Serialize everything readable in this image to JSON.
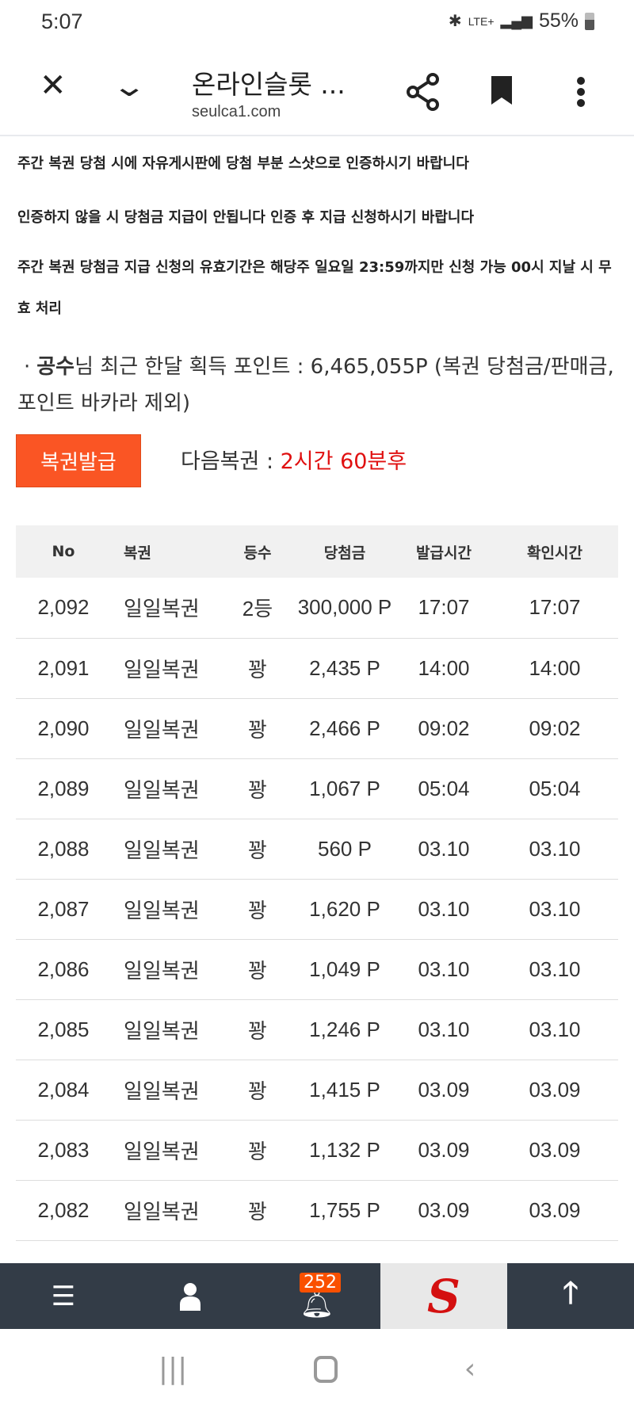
{
  "status_bar": {
    "time": "5:07",
    "network": "LTE+",
    "battery": "55%"
  },
  "browser": {
    "title": "온라인슬롯 ...",
    "url": "seulca1.com"
  },
  "notices": [
    "주간 복권 당첨 시에 자유게시판에 당첨 부분 스샷으로 인증하시기 바랍니다",
    "인증하지 않을 시 당첨금 지급이 안됩니다 인증 후 지급 신청하시기 바랍니다",
    "주간 복권 당첨금 지급 신청의 유효기간은 해당주 일요일 23:59까지만 신청 가능 00시 지날 시 무효 처리"
  ],
  "points": {
    "bullet": "·",
    "user": "공수",
    "text": "님 최근 한달 획득 포인트 : 6,465,055P (복권 당첨금/판매금, 포인트 바카라 제외)"
  },
  "issue_button": "복권발급",
  "next": {
    "label": "다음복권 : ",
    "value": "2시간 60분후"
  },
  "table": {
    "headers": [
      "No",
      "복권",
      "등수",
      "당첨금",
      "발급시간",
      "확인시간"
    ],
    "rows": [
      [
        "2,092",
        "일일복권",
        "2등",
        "300,000 P",
        "17:07",
        "17:07"
      ],
      [
        "2,091",
        "일일복권",
        "꽝",
        "2,435 P",
        "14:00",
        "14:00"
      ],
      [
        "2,090",
        "일일복권",
        "꽝",
        "2,466 P",
        "09:02",
        "09:02"
      ],
      [
        "2,089",
        "일일복권",
        "꽝",
        "1,067 P",
        "05:04",
        "05:04"
      ],
      [
        "2,088",
        "일일복권",
        "꽝",
        "560 P",
        "03.10",
        "03.10"
      ],
      [
        "2,087",
        "일일복권",
        "꽝",
        "1,620 P",
        "03.10",
        "03.10"
      ],
      [
        "2,086",
        "일일복권",
        "꽝",
        "1,049 P",
        "03.10",
        "03.10"
      ],
      [
        "2,085",
        "일일복권",
        "꽝",
        "1,246 P",
        "03.10",
        "03.10"
      ],
      [
        "2,084",
        "일일복권",
        "꽝",
        "1,415 P",
        "03.09",
        "03.09"
      ],
      [
        "2,083",
        "일일복권",
        "꽝",
        "1,132 P",
        "03.09",
        "03.09"
      ],
      [
        "2,082",
        "일일복권",
        "꽝",
        "1,755 P",
        "03.09",
        "03.09"
      ]
    ]
  },
  "bottom_nav": {
    "notification_count": "252",
    "icons": [
      "menu-icon",
      "user-icon",
      "bell-icon",
      "site-logo",
      "arrow-up-icon"
    ]
  },
  "colors": {
    "accent": "#fa5524",
    "nav_bg": "#333c47",
    "red": "#e01010"
  }
}
